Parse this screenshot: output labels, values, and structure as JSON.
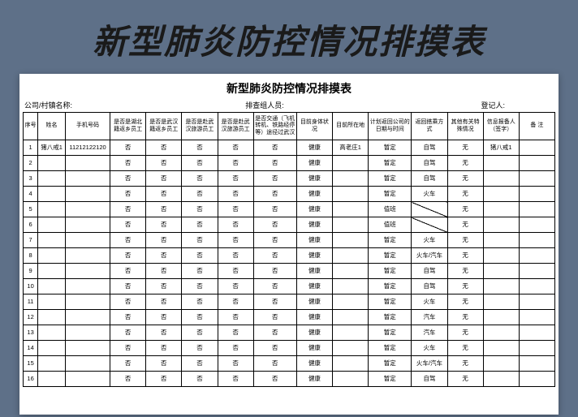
{
  "page_title": "新型肺炎防控情况排摸表",
  "sheet_title": "新型肺炎防控情况排摸表",
  "subheader": {
    "c1": "公司/村镇名称:",
    "c2": "排查组人员:",
    "c3": "登记人:"
  },
  "columns": [
    "序号",
    "姓名",
    "手机号码",
    "是否是湖北籍返乡员工",
    "是否是武汉籍返乡员工",
    "是否是赴武汉旅游员工",
    "是否是赴武汉旅游员工",
    "是否交通（飞机转机、铁路经停等）途径过武汉",
    "目前身体状况",
    "目前所在地",
    "计划返回公司的日期与时间",
    "返回搭乘方式",
    "其他有关特殊情况",
    "信息报备人（签字）",
    "备 注"
  ],
  "rows": [
    {
      "idx": "1",
      "name": "猪八戒1",
      "phone": "11212122120",
      "a": "否",
      "b": "否",
      "c": "否",
      "d": "否",
      "e": "否",
      "health": "健康",
      "loc": "高老庄1",
      "plan": "暂定",
      "ride": "自驾",
      "other": "无",
      "sign": "猪八戒1",
      "note": ""
    },
    {
      "idx": "2",
      "name": "",
      "phone": "",
      "a": "否",
      "b": "否",
      "c": "否",
      "d": "否",
      "e": "否",
      "health": "健康",
      "loc": "",
      "plan": "暂定",
      "ride": "自驾",
      "other": "无",
      "sign": "",
      "note": ""
    },
    {
      "idx": "3",
      "name": "",
      "phone": "",
      "a": "否",
      "b": "否",
      "c": "否",
      "d": "否",
      "e": "否",
      "health": "健康",
      "loc": "",
      "plan": "暂定",
      "ride": "自驾",
      "other": "无",
      "sign": "",
      "note": ""
    },
    {
      "idx": "4",
      "name": "",
      "phone": "",
      "a": "否",
      "b": "否",
      "c": "否",
      "d": "否",
      "e": "否",
      "health": "健康",
      "loc": "",
      "plan": "暂定",
      "ride": "火车",
      "other": "无",
      "sign": "",
      "note": ""
    },
    {
      "idx": "5",
      "name": "",
      "phone": "",
      "a": "否",
      "b": "否",
      "c": "否",
      "d": "否",
      "e": "否",
      "health": "健康",
      "loc": "",
      "plan": "值班",
      "ride": "",
      "other": "无",
      "sign": "",
      "note": "",
      "diag": true
    },
    {
      "idx": "6",
      "name": "",
      "phone": "",
      "a": "否",
      "b": "否",
      "c": "否",
      "d": "否",
      "e": "否",
      "health": "健康",
      "loc": "",
      "plan": "值班",
      "ride": "",
      "other": "无",
      "sign": "",
      "note": "",
      "diag": true
    },
    {
      "idx": "7",
      "name": "",
      "phone": "",
      "a": "否",
      "b": "否",
      "c": "否",
      "d": "否",
      "e": "否",
      "health": "健康",
      "loc": "",
      "plan": "暂定",
      "ride": "火车",
      "other": "无",
      "sign": "",
      "note": ""
    },
    {
      "idx": "8",
      "name": "",
      "phone": "",
      "a": "否",
      "b": "否",
      "c": "否",
      "d": "否",
      "e": "否",
      "health": "健康",
      "loc": "",
      "plan": "暂定",
      "ride": "火车/汽车",
      "other": "无",
      "sign": "",
      "note": ""
    },
    {
      "idx": "9",
      "name": "",
      "phone": "",
      "a": "否",
      "b": "否",
      "c": "否",
      "d": "否",
      "e": "否",
      "health": "健康",
      "loc": "",
      "plan": "暂定",
      "ride": "自驾",
      "other": "无",
      "sign": "",
      "note": ""
    },
    {
      "idx": "10",
      "name": "",
      "phone": "",
      "a": "否",
      "b": "否",
      "c": "否",
      "d": "否",
      "e": "否",
      "health": "健康",
      "loc": "",
      "plan": "暂定",
      "ride": "自驾",
      "other": "无",
      "sign": "",
      "note": ""
    },
    {
      "idx": "11",
      "name": "",
      "phone": "",
      "a": "否",
      "b": "否",
      "c": "否",
      "d": "否",
      "e": "否",
      "health": "健康",
      "loc": "",
      "plan": "暂定",
      "ride": "火车",
      "other": "无",
      "sign": "",
      "note": ""
    },
    {
      "idx": "12",
      "name": "",
      "phone": "",
      "a": "否",
      "b": "否",
      "c": "否",
      "d": "否",
      "e": "否",
      "health": "健康",
      "loc": "",
      "plan": "暂定",
      "ride": "汽车",
      "other": "无",
      "sign": "",
      "note": ""
    },
    {
      "idx": "13",
      "name": "",
      "phone": "",
      "a": "否",
      "b": "否",
      "c": "否",
      "d": "否",
      "e": "否",
      "health": "健康",
      "loc": "",
      "plan": "暂定",
      "ride": "汽车",
      "other": "无",
      "sign": "",
      "note": ""
    },
    {
      "idx": "14",
      "name": "",
      "phone": "",
      "a": "否",
      "b": "否",
      "c": "否",
      "d": "否",
      "e": "否",
      "health": "健康",
      "loc": "",
      "plan": "暂定",
      "ride": "火车",
      "other": "无",
      "sign": "",
      "note": ""
    },
    {
      "idx": "15",
      "name": "",
      "phone": "",
      "a": "否",
      "b": "否",
      "c": "否",
      "d": "否",
      "e": "否",
      "health": "健康",
      "loc": "",
      "plan": "暂定",
      "ride": "火车/汽车",
      "other": "无",
      "sign": "",
      "note": ""
    },
    {
      "idx": "16",
      "name": "",
      "phone": "",
      "a": "否",
      "b": "否",
      "c": "否",
      "d": "否",
      "e": "否",
      "health": "健康",
      "loc": "",
      "plan": "暂定",
      "ride": "自驾",
      "other": "无",
      "sign": "",
      "note": ""
    }
  ],
  "colors": {
    "page_bg": "#5e7088",
    "sheet_bg": "#ffffff",
    "border": "#000000",
    "text": "#000000"
  }
}
